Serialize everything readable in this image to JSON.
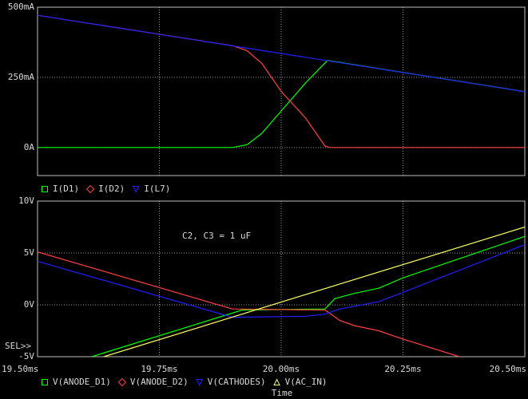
{
  "chart_data": [
    {
      "type": "line",
      "ylim": [
        -100,
        500
      ],
      "yticks": [
        {
          "value": 0,
          "label": "0A"
        },
        {
          "value": 250,
          "label": "250mA"
        },
        {
          "value": 500,
          "label": "500mA"
        }
      ],
      "grid": true,
      "series": [
        {
          "name": "I(D1)",
          "color": "#00ff00",
          "marker": "square",
          "x": [
            19.5,
            19.9,
            19.93,
            19.96,
            20.0,
            20.05,
            20.095,
            20.5
          ],
          "values": [
            0,
            0,
            10,
            50,
            130,
            230,
            310,
            199
          ]
        },
        {
          "name": "I(D2)",
          "color": "#ff4040",
          "marker": "diamond",
          "x": [
            19.5,
            19.9,
            19.93,
            19.96,
            20.0,
            20.05,
            20.09,
            20.1,
            20.5
          ],
          "values": [
            471,
            363,
            345,
            300,
            200,
            105,
            5,
            0,
            0
          ]
        },
        {
          "name": "I(L7)",
          "color": "#2020ff",
          "marker": "triangle-down",
          "x": [
            19.5,
            20.5
          ],
          "values": [
            471,
            199
          ]
        }
      ]
    },
    {
      "type": "line",
      "ylim": [
        -5,
        10
      ],
      "yticks": [
        {
          "value": -5,
          "label": "-5V"
        },
        {
          "value": 0,
          "label": "0V"
        },
        {
          "value": 5,
          "label": "5V"
        },
        {
          "value": 10,
          "label": "10V"
        }
      ],
      "xlim": [
        19.5,
        20.5
      ],
      "xticks": [
        {
          "value": 19.5,
          "label": "19.50ms"
        },
        {
          "value": 19.75,
          "label": "19.75ms"
        },
        {
          "value": 20.0,
          "label": "20.00ms"
        },
        {
          "value": 20.25,
          "label": "20.25ms"
        },
        {
          "value": 20.5,
          "label": "20.50ms"
        }
      ],
      "xlabel": "Time",
      "annotation": "C2, C3 = 1 uF",
      "grid": true,
      "series": [
        {
          "name": "V(ANODE_D1)",
          "color": "#00ff00",
          "marker": "square",
          "x": [
            19.611,
            19.92,
            20.09,
            20.11,
            20.15,
            20.2,
            20.25,
            20.5
          ],
          "values": [
            -5,
            -0.5,
            -0.4,
            0.6,
            1.1,
            1.6,
            2.6,
            6.6
          ]
        },
        {
          "name": "V(ANODE_D2)",
          "color": "#ff4040",
          "marker": "diamond",
          "x": [
            19.5,
            19.9,
            20.09,
            20.12,
            20.15,
            20.2,
            20.25,
            20.366
          ],
          "values": [
            5.1,
            -0.4,
            -0.5,
            -1.5,
            -2.0,
            -2.5,
            -3.3,
            -5
          ]
        },
        {
          "name": "V(CATHODES)",
          "color": "#2020ff",
          "marker": "triangle-down",
          "x": [
            19.5,
            19.9,
            20.05,
            20.09,
            20.12,
            20.2,
            20.25,
            20.5
          ],
          "values": [
            4.2,
            -1.2,
            -1.1,
            -0.9,
            -0.4,
            0.3,
            1.2,
            5.8
          ]
        },
        {
          "name": "V(AC_IN)",
          "color": "#ffff60",
          "marker": "triangle-up",
          "x": [
            19.636,
            20.5
          ],
          "values": [
            -5,
            7.5
          ]
        }
      ]
    }
  ],
  "selector": "SEL>>"
}
